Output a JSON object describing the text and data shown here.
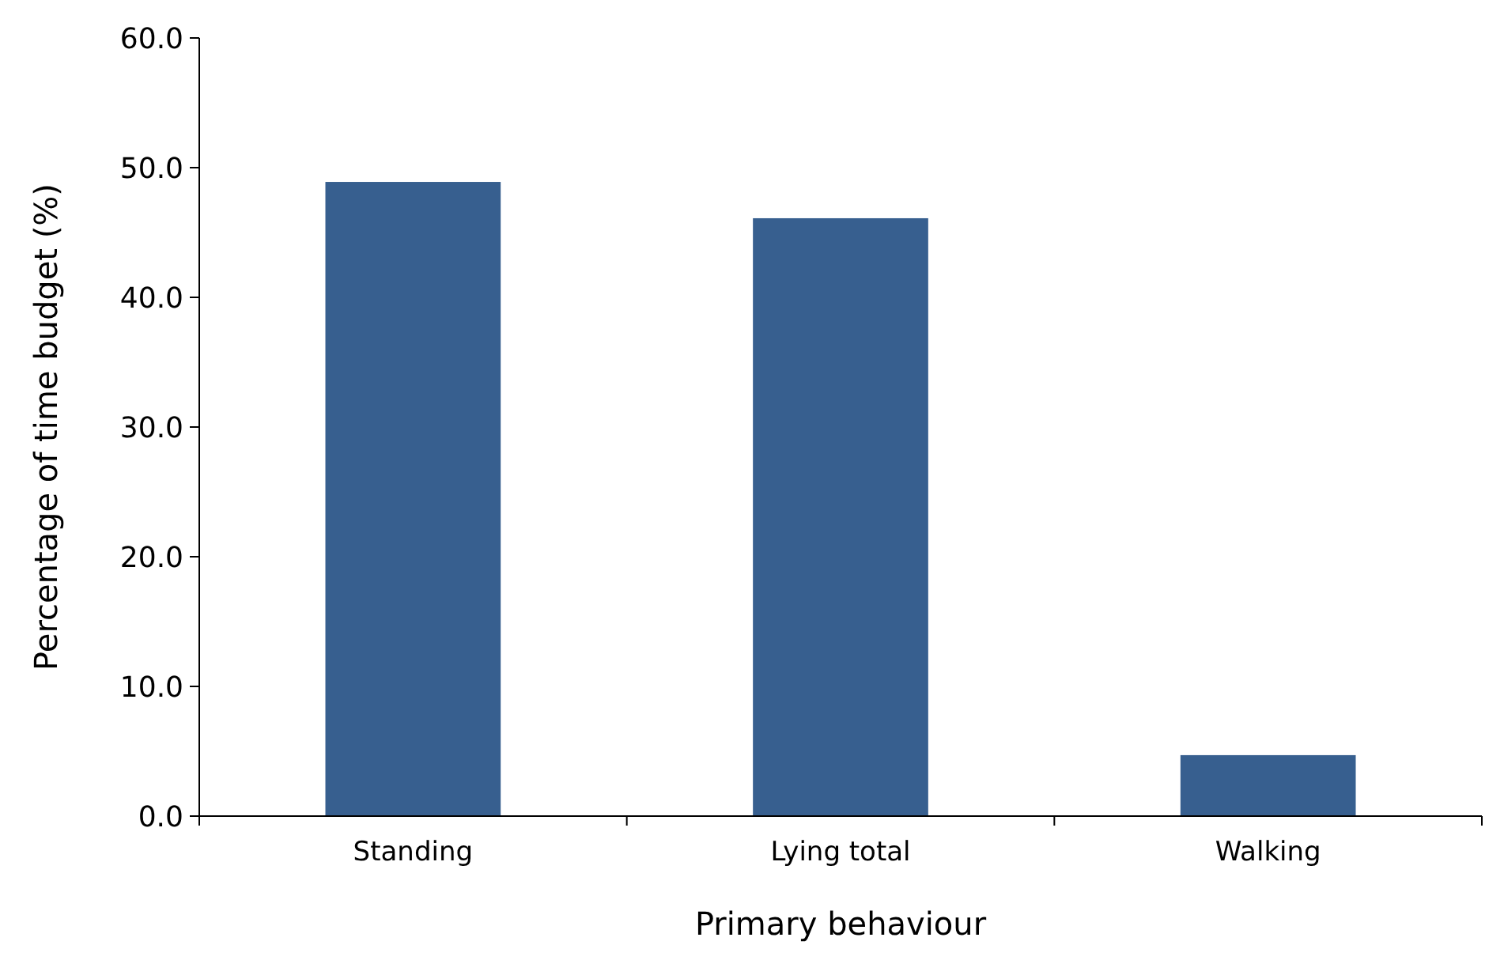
{
  "chart_data": {
    "type": "bar",
    "xlabel": "Primary behaviour",
    "ylabel": "Percentage of time budget (%)",
    "categories": [
      "Standing",
      "Lying total",
      "Walking"
    ],
    "values": [
      48.9,
      46.1,
      4.7
    ],
    "color": "#375f8f",
    "ylim": [
      0,
      60
    ],
    "yticks": [
      {
        "value": 0,
        "label": "0.0"
      },
      {
        "value": 10,
        "label": "10.0"
      },
      {
        "value": 20,
        "label": "20.0"
      },
      {
        "value": 30,
        "label": "30.0"
      },
      {
        "value": 40,
        "label": "40.0"
      },
      {
        "value": 50,
        "label": "50.0"
      },
      {
        "value": 60,
        "label": "60.0"
      }
    ],
    "grid": false
  }
}
